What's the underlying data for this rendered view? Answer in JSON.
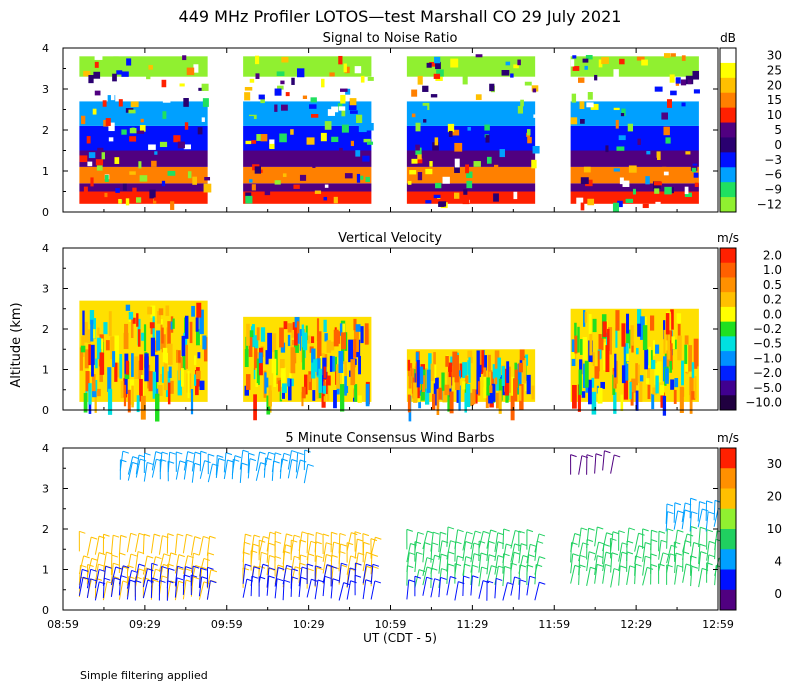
{
  "figure": {
    "title": "449 MHz Profiler LOTOS—test Marshall CO 29 July 2021",
    "ylabel": "Altitude (km)",
    "xlabel": "UT  (CDT - 5)",
    "footnote": "Simple filtering applied"
  },
  "chart_data": [
    {
      "type": "heatmap",
      "title": "Signal to Noise Ratio",
      "colorbar_unit": "dB",
      "colorbar_ticks": [
        "30",
        "25",
        "20",
        "15",
        "10",
        "5",
        "0",
        "−3",
        "−6",
        "−9",
        "−12"
      ],
      "colorbar_colors": [
        "#ffffff",
        "#ffff00",
        "#ffc000",
        "#ff8000",
        "#ff2000",
        "#500080",
        "#2a0070",
        "#0010ff",
        "#00a0ff",
        "#20e060",
        "#90f030"
      ],
      "x_ticks": [
        "08:59",
        "09:29",
        "09:59",
        "10:29",
        "10:59",
        "11:29",
        "11:59",
        "12:29",
        "12:59"
      ],
      "y_ticks": [
        "0",
        "1",
        "2",
        "3",
        "4"
      ],
      "ylim": [
        0,
        4
      ],
      "segments": [
        {
          "start": "09:05",
          "end": "09:52"
        },
        {
          "start": "10:05",
          "end": "10:52"
        },
        {
          "start": "11:05",
          "end": "11:52"
        },
        {
          "start": "12:05",
          "end": "12:52"
        }
      ],
      "profile_layers": [
        {
          "from_km": 0.2,
          "to_km": 0.5,
          "color": "#ff2000"
        },
        {
          "from_km": 0.5,
          "to_km": 0.7,
          "color": "#500080"
        },
        {
          "from_km": 0.7,
          "to_km": 1.1,
          "color": "#ff8000"
        },
        {
          "from_km": 1.1,
          "to_km": 1.5,
          "color": "#500080"
        },
        {
          "from_km": 1.5,
          "to_km": 2.1,
          "color": "#0010ff"
        },
        {
          "from_km": 2.1,
          "to_km": 2.7,
          "color": "#00a0ff"
        },
        {
          "from_km": 2.7,
          "to_km": 3.3,
          "color": "#ffffff"
        },
        {
          "from_km": 3.3,
          "to_km": 3.8,
          "color": "#90f030"
        },
        {
          "from_km": 3.8,
          "to_km": 4.0,
          "color": "#ffffff"
        }
      ]
    },
    {
      "type": "heatmap",
      "title": "Vertical Velocity",
      "colorbar_unit": "m/s",
      "colorbar_ticks": [
        "2.0",
        "1.0",
        "0.5",
        "0.2",
        "0.0",
        "−0.2",
        "−0.5",
        "−1.0",
        "−2.0",
        "−5.0",
        "−10.0"
      ],
      "colorbar_colors": [
        "#ff2000",
        "#ff6000",
        "#ff9000",
        "#ffc000",
        "#ffff00",
        "#20e020",
        "#00e0e0",
        "#0090ff",
        "#0020ff",
        "#400090",
        "#200040"
      ],
      "x_ticks": [
        "08:59",
        "09:29",
        "09:59",
        "10:29",
        "10:59",
        "11:29",
        "11:59",
        "12:29",
        "12:59"
      ],
      "y_ticks": [
        "0",
        "1",
        "2",
        "3",
        "4"
      ],
      "ylim": [
        0,
        4
      ],
      "segments": [
        {
          "start": "09:05",
          "end": "09:52",
          "top_km": 2.7
        },
        {
          "start": "10:05",
          "end": "10:52",
          "top_km": 2.3
        },
        {
          "start": "11:05",
          "end": "11:52",
          "top_km": 1.5
        },
        {
          "start": "12:05",
          "end": "12:52",
          "top_km": 2.5
        }
      ]
    },
    {
      "type": "scatter",
      "title": "5 Minute Consensus Wind Barbs",
      "colorbar_unit": "m/s",
      "colorbar_ticks": [
        "30",
        "20",
        "10",
        "4",
        "0"
      ],
      "colorbar_colors": [
        "#ff2000",
        "#ff9000",
        "#ffc000",
        "#90f030",
        "#20d060",
        "#00a0ff",
        "#0010ff",
        "#500080"
      ],
      "x_ticks": [
        "08:59",
        "09:29",
        "09:59",
        "10:29",
        "10:59",
        "11:29",
        "11:59",
        "12:29",
        "12:59"
      ],
      "y_ticks": [
        "0",
        "1",
        "2",
        "3",
        "4"
      ],
      "ylim": [
        0,
        4
      ],
      "barb_groups": [
        {
          "start": "09:05",
          "end": "09:52",
          "heights_km": [
            0.3,
            0.6,
            0.9,
            1.4
          ],
          "color": "#ffc000"
        },
        {
          "start": "09:05",
          "end": "09:52",
          "heights_km": [
            0.3,
            0.6
          ],
          "color": "#0010ff"
        },
        {
          "start": "09:20",
          "end": "10:30",
          "heights_km": [
            3.2,
            3.4
          ],
          "color": "#00a0ff"
        },
        {
          "start": "10:05",
          "end": "10:52",
          "heights_km": [
            0.6,
            0.9,
            1.2,
            1.4
          ],
          "color": "#ffc000"
        },
        {
          "start": "10:05",
          "end": "10:52",
          "heights_km": [
            0.3,
            0.6
          ],
          "color": "#0010ff"
        },
        {
          "start": "11:05",
          "end": "11:52",
          "heights_km": [
            0.6,
            0.9,
            1.2,
            1.5
          ],
          "color": "#20d060"
        },
        {
          "start": "11:05",
          "end": "11:52",
          "heights_km": [
            0.3
          ],
          "color": "#0010ff"
        },
        {
          "start": "12:05",
          "end": "12:58",
          "heights_km": [
            0.6,
            0.9,
            1.2,
            1.5
          ],
          "color": "#20d060"
        },
        {
          "start": "12:40",
          "end": "12:58",
          "heights_km": [
            2.0,
            2.2
          ],
          "color": "#00a0ff"
        },
        {
          "start": "12:05",
          "end": "12:20",
          "heights_km": [
            3.4
          ],
          "color": "#500080"
        }
      ]
    }
  ]
}
